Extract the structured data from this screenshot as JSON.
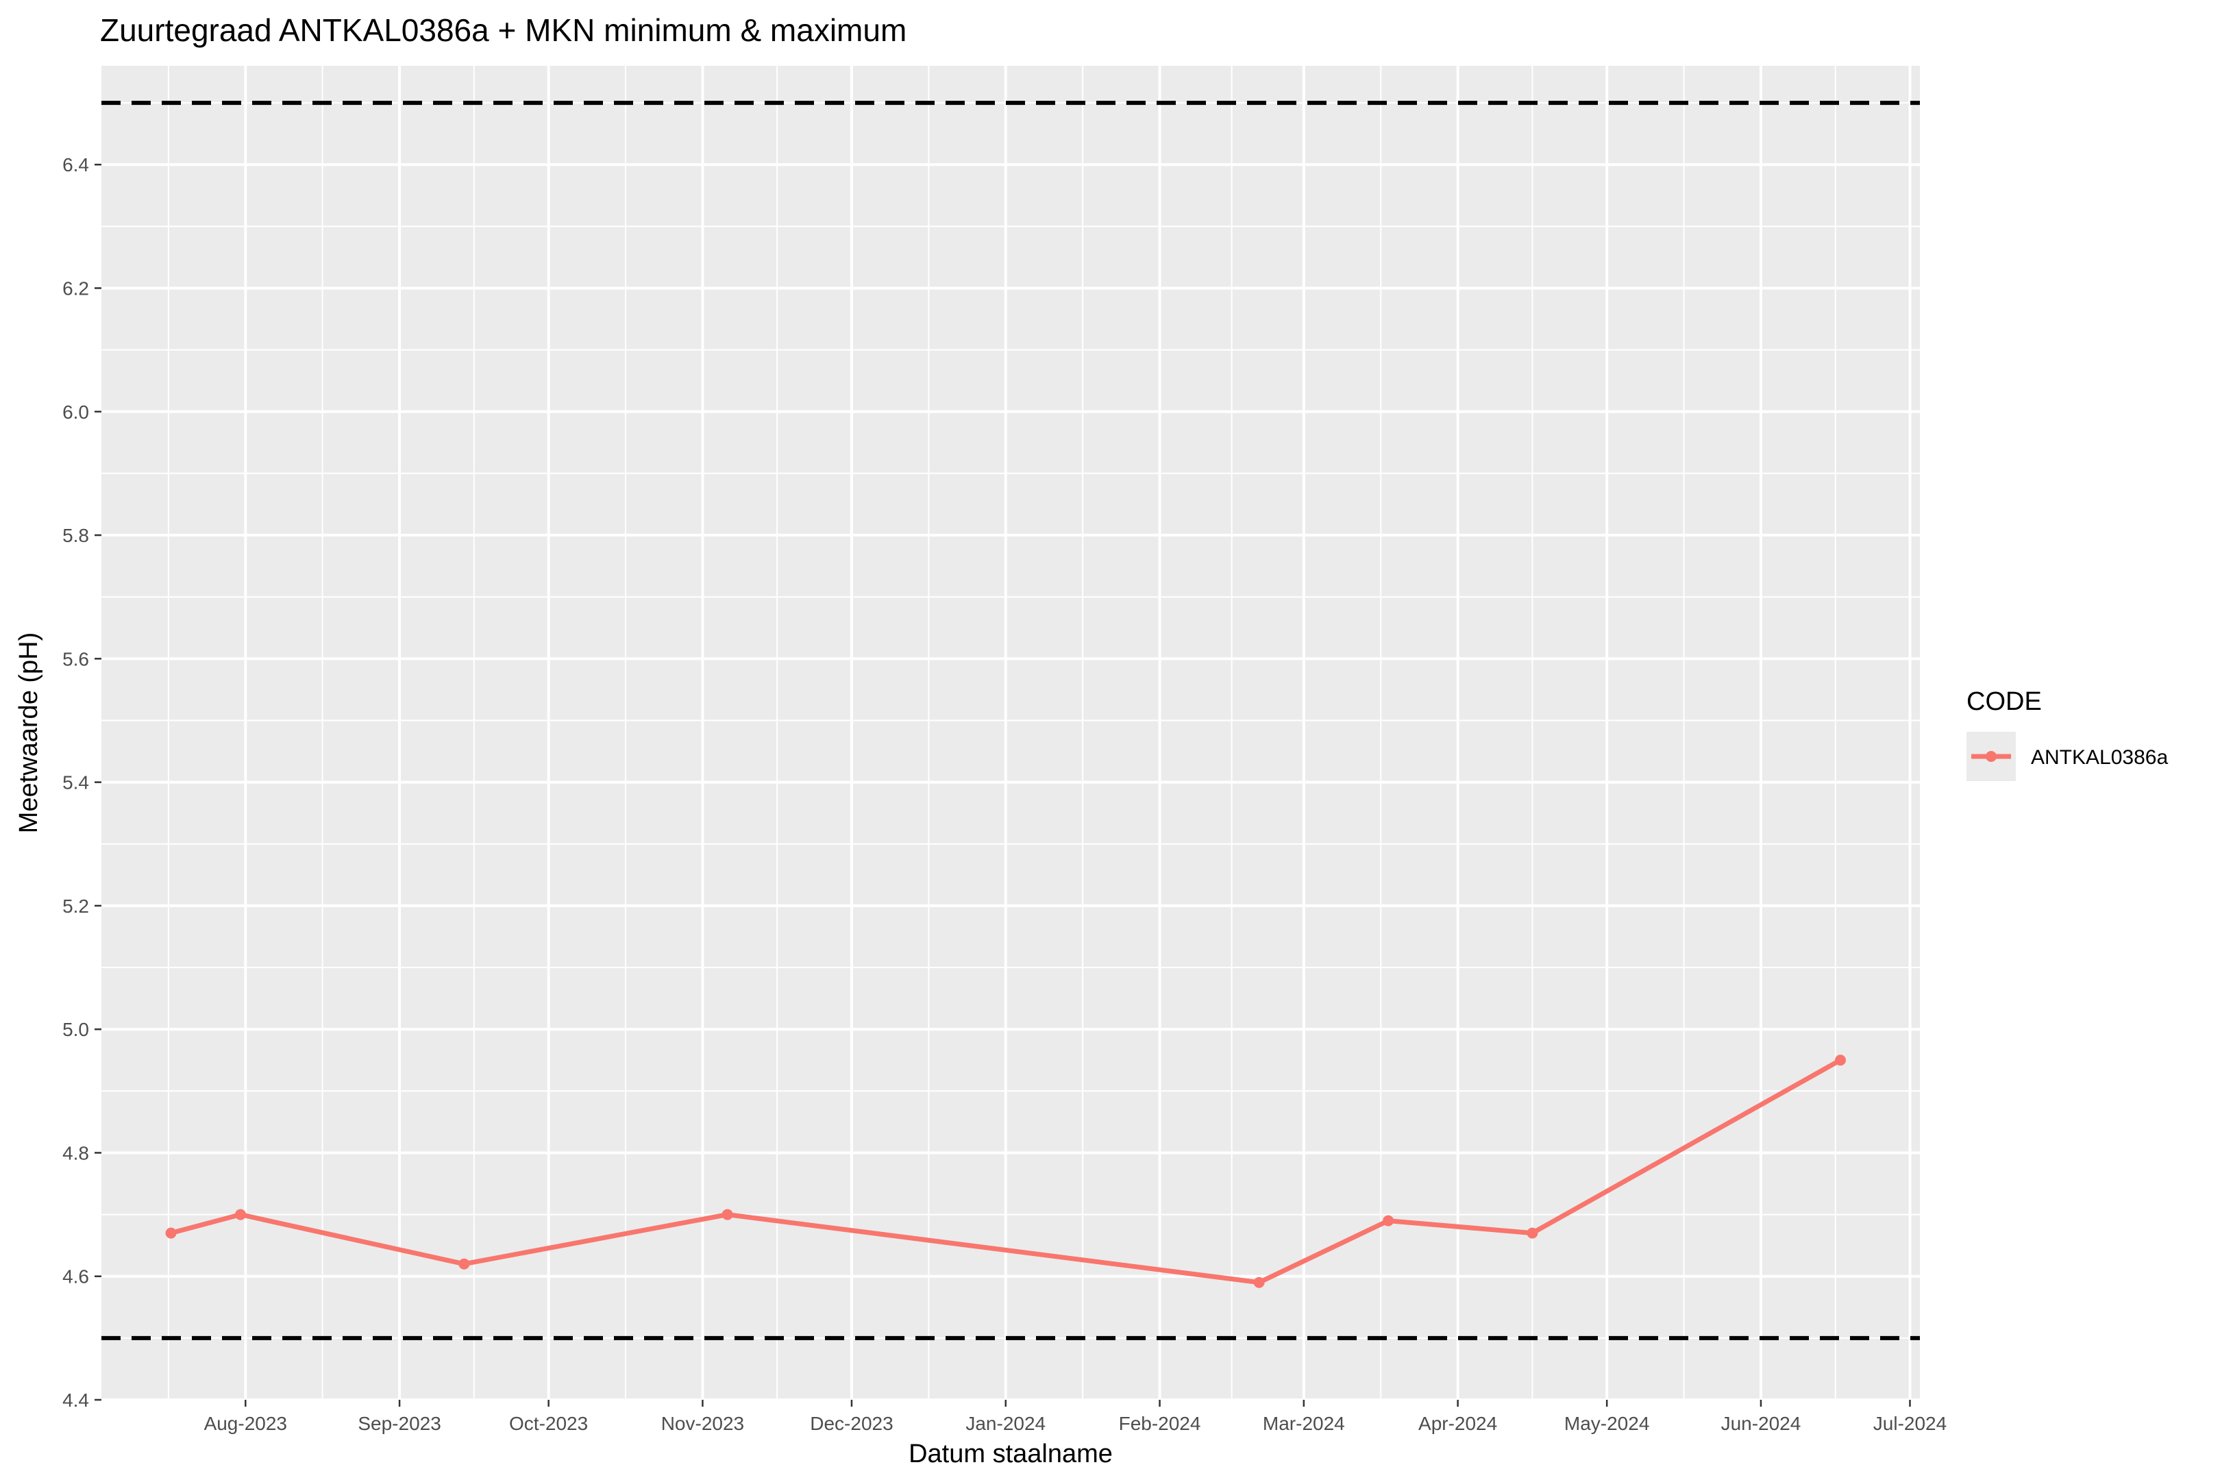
{
  "chart_data": {
    "type": "line",
    "title": "Zuurtegraad ANTKAL0386a + MKN minimum & maximum",
    "xlabel": "Datum staalname",
    "ylabel": "Meetwaarde (pH)",
    "xlim": [
      "2023-07-03",
      "2024-07-03"
    ],
    "ylim": [
      4.4,
      6.56
    ],
    "x_ticks": [
      {
        "date": "2023-08-01",
        "label": "Aug-2023"
      },
      {
        "date": "2023-09-01",
        "label": "Sep-2023"
      },
      {
        "date": "2023-10-01",
        "label": "Oct-2023"
      },
      {
        "date": "2023-11-01",
        "label": "Nov-2023"
      },
      {
        "date": "2023-12-01",
        "label": "Dec-2023"
      },
      {
        "date": "2024-01-01",
        "label": "Jan-2024"
      },
      {
        "date": "2024-02-01",
        "label": "Feb-2024"
      },
      {
        "date": "2024-03-01",
        "label": "Mar-2024"
      },
      {
        "date": "2024-04-01",
        "label": "Apr-2024"
      },
      {
        "date": "2024-05-01",
        "label": "May-2024"
      },
      {
        "date": "2024-06-01",
        "label": "Jun-2024"
      },
      {
        "date": "2024-07-01",
        "label": "Jul-2024"
      }
    ],
    "y_ticks": [
      {
        "value": 4.4,
        "label": "4.4"
      },
      {
        "value": 4.6,
        "label": "4.6"
      },
      {
        "value": 4.8,
        "label": "4.8"
      },
      {
        "value": 5.0,
        "label": "5.0"
      },
      {
        "value": 5.2,
        "label": "5.2"
      },
      {
        "value": 5.4,
        "label": "5.4"
      },
      {
        "value": 5.6,
        "label": "5.6"
      },
      {
        "value": 5.8,
        "label": "5.8"
      },
      {
        "value": 6.0,
        "label": "6.0"
      },
      {
        "value": 6.2,
        "label": "6.2"
      },
      {
        "value": 6.4,
        "label": "6.4"
      }
    ],
    "series": [
      {
        "name": "ANTKAL0386a",
        "color": "#F8766D",
        "points": [
          {
            "x": "2023-07-17",
            "y": 4.67
          },
          {
            "x": "2023-07-31",
            "y": 4.7
          },
          {
            "x": "2023-09-14",
            "y": 4.62
          },
          {
            "x": "2023-11-06",
            "y": 4.7
          },
          {
            "x": "2024-02-21",
            "y": 4.59
          },
          {
            "x": "2024-03-18",
            "y": 4.69
          },
          {
            "x": "2024-04-16",
            "y": 4.67
          },
          {
            "x": "2024-06-17",
            "y": 4.95
          }
        ]
      }
    ],
    "reference_lines": [
      {
        "y": 6.5,
        "style": "dashed",
        "color": "#000000"
      },
      {
        "y": 4.5,
        "style": "dashed",
        "color": "#000000"
      }
    ],
    "legend": {
      "title": "CODE",
      "placement": "right",
      "entries": [
        "ANTKAL0386a"
      ]
    },
    "grid": true,
    "panel_background": "#EBEBEB",
    "gridline_color": "#FFFFFF"
  }
}
